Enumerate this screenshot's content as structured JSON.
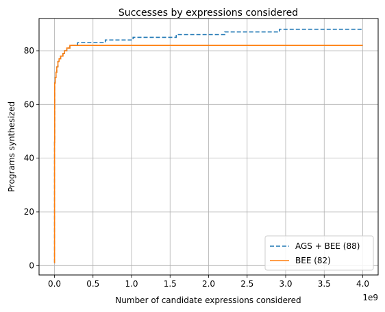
{
  "chart_data": {
    "type": "line",
    "title": "Successes by expressions considered",
    "xlabel": "Number of candidate expressions considered",
    "ylabel": "Programs synthesized",
    "x_offset_label": "1e9",
    "x_scale": 1000000000,
    "xlim": [
      -0.2,
      4.2
    ],
    "ylim": [
      -3.5,
      92
    ],
    "x_ticks": [
      0.0,
      0.5,
      1.0,
      1.5,
      2.0,
      2.5,
      3.0,
      3.5,
      4.0
    ],
    "x_tick_labels": [
      "0.0",
      "0.5",
      "1.0",
      "1.5",
      "2.0",
      "2.5",
      "3.0",
      "3.5",
      "4.0"
    ],
    "y_ticks": [
      0,
      20,
      40,
      60,
      80
    ],
    "y_tick_labels": [
      "0",
      "20",
      "40",
      "60",
      "80"
    ],
    "grid": true,
    "legend_position": "lower-right",
    "series": [
      {
        "name": "AGS + BEE (88)",
        "color": "#1f77b4",
        "style": "dashed",
        "step": true,
        "points": [
          [
            0.0,
            1
          ],
          [
            0.001,
            46
          ],
          [
            0.003,
            68
          ],
          [
            0.01,
            70
          ],
          [
            0.02,
            72
          ],
          [
            0.03,
            74
          ],
          [
            0.045,
            76
          ],
          [
            0.06,
            77
          ],
          [
            0.08,
            78
          ],
          [
            0.11,
            79
          ],
          [
            0.13,
            80
          ],
          [
            0.16,
            81
          ],
          [
            0.2,
            82
          ],
          [
            0.3,
            83
          ],
          [
            0.66,
            84
          ],
          [
            1.02,
            85
          ],
          [
            1.58,
            86
          ],
          [
            2.21,
            87
          ],
          [
            2.92,
            88
          ],
          [
            4.0,
            88
          ]
        ]
      },
      {
        "name": "BEE (82)",
        "color": "#ff7f0e",
        "style": "solid",
        "step": true,
        "points": [
          [
            0.0,
            1
          ],
          [
            0.001,
            46
          ],
          [
            0.003,
            68
          ],
          [
            0.01,
            70
          ],
          [
            0.02,
            72
          ],
          [
            0.03,
            74
          ],
          [
            0.045,
            76
          ],
          [
            0.06,
            77
          ],
          [
            0.08,
            78
          ],
          [
            0.11,
            79
          ],
          [
            0.13,
            80
          ],
          [
            0.16,
            81
          ],
          [
            0.2,
            82
          ],
          [
            4.0,
            82
          ]
        ]
      }
    ]
  }
}
